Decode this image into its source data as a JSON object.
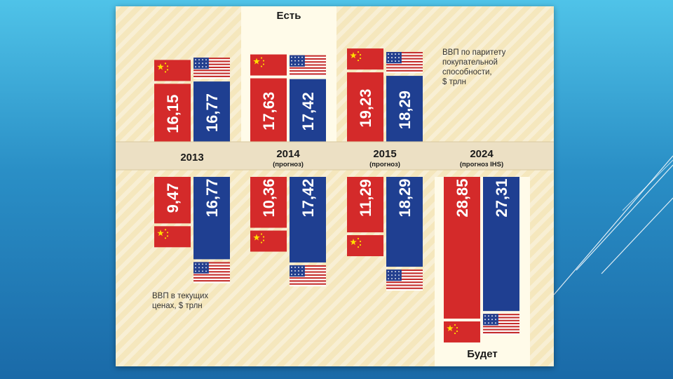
{
  "colors": {
    "china": "#d42a2a",
    "usa": "#1f3f91",
    "band": "#ece0c4",
    "panel": "#f5e7bd",
    "highlight": "#fffbe9"
  },
  "chart_data": {
    "type": "bar",
    "title": "",
    "categories": [
      {
        "year": "2013",
        "note": ""
      },
      {
        "year": "2014",
        "note": "(прогноз)"
      },
      {
        "year": "2015",
        "note": "(прогноз)"
      },
      {
        "year": "2024",
        "note": "(прогноз IHS)"
      }
    ],
    "top_label": [
      "ВВП по паритету",
      "покупательной",
      "способности,",
      "$ трлн"
    ],
    "bottom_label": [
      "ВВП в текущих",
      "ценах, $ трлн"
    ],
    "top_series": [
      {
        "country": "china",
        "values": [
          16.15,
          17.63,
          19.23,
          null
        ],
        "labels": [
          "16,15",
          "17,63",
          "19,23",
          ""
        ]
      },
      {
        "country": "usa",
        "values": [
          16.77,
          17.42,
          18.29,
          null
        ],
        "labels": [
          "16,77",
          "17,42",
          "18,29",
          ""
        ]
      }
    ],
    "bottom_series": [
      {
        "country": "china",
        "values": [
          9.47,
          10.36,
          11.29,
          28.85
        ],
        "labels": [
          "9,47",
          "10,36",
          "11,29",
          "28,85"
        ]
      },
      {
        "country": "usa",
        "values": [
          16.77,
          17.42,
          18.29,
          27.31
        ],
        "labels": [
          "16,77",
          "17,42",
          "18,29",
          "27,31"
        ]
      }
    ],
    "highlights": [
      {
        "text": "Есть",
        "column": 1
      },
      {
        "text": "Будет",
        "column": 3
      }
    ]
  }
}
